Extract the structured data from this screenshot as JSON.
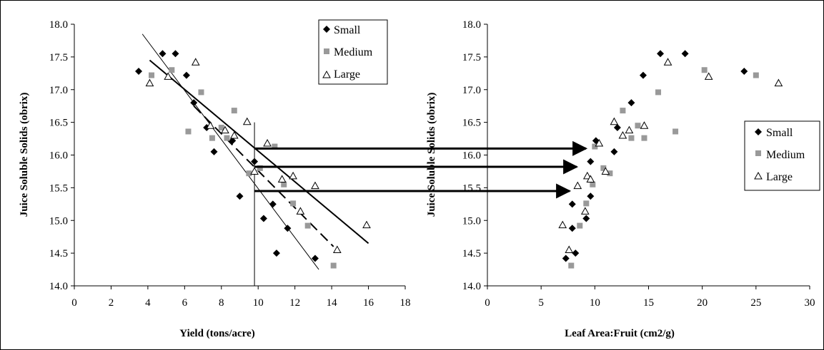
{
  "chart_data": [
    {
      "type": "scatter",
      "xlabel": "Yield (tons/acre)",
      "ylabel": "Juice Soluble Solids (obrix)",
      "xlim": [
        0,
        18
      ],
      "ylim": [
        14.0,
        18.0
      ],
      "xticks": [
        "0",
        "2",
        "4",
        "6",
        "8",
        "10",
        "12",
        "14",
        "16",
        "18"
      ],
      "yticks": [
        "14.0",
        "14.5",
        "15.0",
        "15.5",
        "16.0",
        "16.5",
        "17.0",
        "17.5",
        "18.0"
      ],
      "legend": {
        "position": "top-right",
        "entries": [
          "Small",
          "Medium",
          "Large"
        ]
      },
      "series": [
        {
          "name": "Small",
          "marker": "diamond",
          "color": "#000000",
          "x": [
            3.5,
            4.8,
            5.5,
            6.1,
            6.5,
            7.2,
            7.6,
            8.6,
            9.0,
            9.8,
            10.3,
            10.8,
            11.0,
            11.6,
            13.1
          ],
          "y": [
            17.28,
            17.55,
            17.55,
            17.22,
            16.8,
            16.42,
            16.05,
            16.22,
            15.37,
            15.9,
            15.03,
            15.25,
            14.5,
            14.88,
            14.42
          ]
        },
        {
          "name": "Medium",
          "marker": "square",
          "color": "#999999",
          "x": [
            4.2,
            5.3,
            6.2,
            6.9,
            7.5,
            8.0,
            8.3,
            8.7,
            9.5,
            10.1,
            10.9,
            11.4,
            11.9,
            12.7,
            14.1
          ],
          "y": [
            17.22,
            17.3,
            16.36,
            16.96,
            16.26,
            16.42,
            16.26,
            16.68,
            15.72,
            15.8,
            16.13,
            15.55,
            15.26,
            14.92,
            14.31
          ]
        },
        {
          "name": "Large",
          "marker": "triangle",
          "color": "#000000",
          "x": [
            4.1,
            5.1,
            6.6,
            7.4,
            8.2,
            8.7,
            9.4,
            9.8,
            10.5,
            11.3,
            11.9,
            12.3,
            13.1,
            14.3,
            15.9
          ],
          "y": [
            17.1,
            17.2,
            17.42,
            16.45,
            16.38,
            16.3,
            16.51,
            15.75,
            16.18,
            15.63,
            15.68,
            15.14,
            15.53,
            14.55,
            14.93
          ]
        }
      ],
      "lines": [
        {
          "style": "solid-thin",
          "x": [
            3.7,
            13.3
          ],
          "y": [
            17.85,
            14.25
          ]
        },
        {
          "style": "solid-thick",
          "x": [
            4.1,
            16.0
          ],
          "y": [
            17.45,
            14.65
          ]
        },
        {
          "style": "dashed",
          "x": [
            6.5,
            14.1
          ],
          "y": [
            16.75,
            14.6
          ]
        },
        {
          "style": "vertical",
          "x": [
            9.8,
            9.8
          ],
          "y": [
            16.5,
            14.0
          ]
        }
      ]
    },
    {
      "type": "scatter",
      "xlabel": "Leaf Area:Fruit (cm2/g)",
      "ylabel": "Juice Soluble Solids (obrix)",
      "xlim": [
        0,
        30
      ],
      "ylim": [
        14.0,
        18.0
      ],
      "xticks": [
        "0",
        "5",
        "10",
        "15",
        "20",
        "25",
        "30"
      ],
      "yticks": [
        "14.0",
        "14.5",
        "15.0",
        "15.5",
        "16.0",
        "16.5",
        "17.0",
        "17.5",
        "18.0"
      ],
      "legend": {
        "position": "right",
        "entries": [
          "Small",
          "Medium",
          "Large"
        ]
      },
      "series": [
        {
          "name": "Small",
          "marker": "diamond",
          "color": "#000000",
          "x": [
            7.3,
            7.9,
            7.9,
            8.2,
            9.2,
            9.6,
            9.6,
            10.1,
            11.8,
            12.1,
            13.4,
            14.5,
            16.1,
            18.4,
            23.9
          ],
          "y": [
            14.42,
            14.88,
            15.25,
            14.5,
            15.03,
            15.37,
            15.9,
            16.22,
            16.05,
            16.42,
            16.8,
            17.22,
            17.55,
            17.55,
            17.28
          ]
        },
        {
          "name": "Medium",
          "marker": "square",
          "color": "#999999",
          "x": [
            7.8,
            8.6,
            9.2,
            9.8,
            10.0,
            10.8,
            11.4,
            12.6,
            13.4,
            14.0,
            14.6,
            15.9,
            17.5,
            20.2,
            25.0
          ],
          "y": [
            14.31,
            14.92,
            15.26,
            15.55,
            16.13,
            15.8,
            15.72,
            16.68,
            16.26,
            16.45,
            16.26,
            16.96,
            16.36,
            17.3,
            17.22
          ]
        },
        {
          "name": "Large",
          "marker": "triangle",
          "color": "#000000",
          "x": [
            7.0,
            7.6,
            8.4,
            9.1,
            9.3,
            9.6,
            10.4,
            11.0,
            11.8,
            12.6,
            13.2,
            14.6,
            16.8,
            20.6,
            27.1
          ],
          "y": [
            14.93,
            14.55,
            15.53,
            15.14,
            15.68,
            15.63,
            16.18,
            15.75,
            16.51,
            16.3,
            16.38,
            16.45,
            17.42,
            17.2,
            17.1
          ]
        }
      ]
    }
  ],
  "arrows": [
    {
      "y": 16.1
    },
    {
      "y": 15.82
    },
    {
      "y": 15.45
    }
  ],
  "colors": {
    "small": "#000000",
    "medium": "#999999",
    "large": "#000000",
    "frame": "#000000"
  }
}
